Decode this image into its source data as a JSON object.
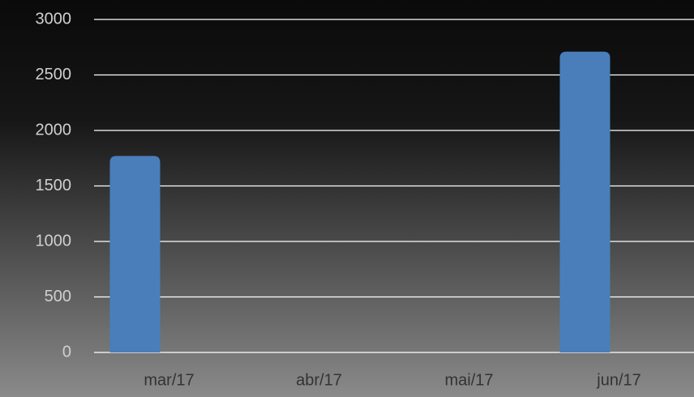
{
  "chart_data": {
    "type": "bar",
    "categories": [
      "mar/17",
      "abr/17",
      "mai/17",
      "jun/17"
    ],
    "values": [
      1770,
      null,
      null,
      2710
    ],
    "color": "#4a7ebb",
    "ylim": [
      0,
      3000
    ],
    "yticks": [
      0,
      500,
      1000,
      1500,
      2000,
      2500,
      3000
    ],
    "grid": true
  }
}
